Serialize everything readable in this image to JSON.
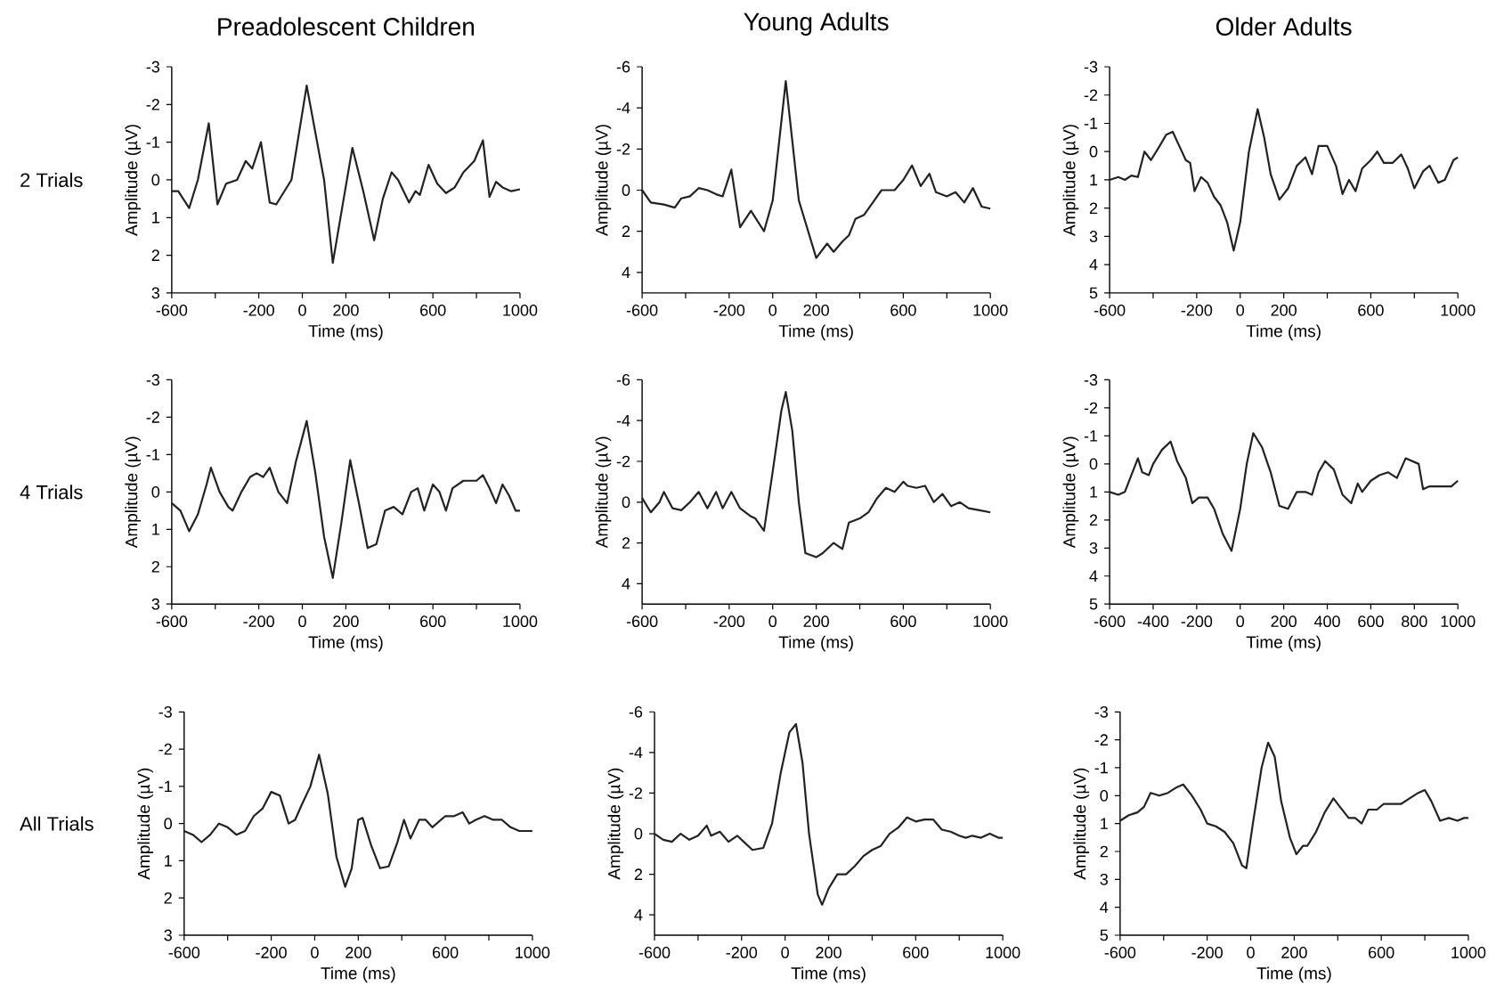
{
  "chart_data": [
    {
      "type": "line",
      "title": "Preadolescent Children",
      "xlabel": "Time (ms)",
      "ylabel": "Amplitude (µV)",
      "annotations": [
        "2 Trials"
      ],
      "xlim": [
        -600,
        1000
      ],
      "xticks": [
        -600,
        {
          "value": -400,
          "label": null
        },
        -200,
        0,
        200,
        {
          "value": 400,
          "label": null
        },
        600,
        {
          "value": 800,
          "label": null
        },
        1000
      ],
      "ylim": [
        3,
        -3
      ],
      "yticks": [
        -3,
        -2,
        -1,
        0,
        1,
        2,
        3
      ],
      "x": [
        -600,
        -570,
        -520,
        -480,
        -430,
        -390,
        -350,
        -300,
        -260,
        -230,
        -190,
        -150,
        -120,
        -50,
        20,
        100,
        140,
        190,
        230,
        280,
        330,
        370,
        410,
        440,
        490,
        520,
        540,
        580,
        620,
        660,
        700,
        740,
        790,
        830,
        860,
        890,
        920,
        960,
        1000
      ],
      "series": [
        {
          "color": "#222222",
          "values": [
            0.3,
            0.3,
            0.75,
            0,
            -1.5,
            0.65,
            0.1,
            0,
            -0.5,
            -0.3,
            -1.0,
            0.6,
            0.65,
            0,
            -2.5,
            0,
            2.2,
            0.5,
            -0.85,
            0.3,
            1.6,
            0.5,
            -0.2,
            0,
            0.6,
            0.3,
            0.4,
            -0.4,
            0.1,
            0.35,
            0.2,
            -0.2,
            -0.5,
            -1.05,
            0.45,
            0.05,
            0.2,
            0.3,
            0.25
          ]
        }
      ]
    },
    {
      "type": "line",
      "title": "Young Adults",
      "xlabel": "Time (ms)",
      "ylabel": "Amplitude (µV)",
      "xlim": [
        -600,
        1000
      ],
      "xticks": [
        -600,
        {
          "value": -400,
          "label": null
        },
        -200,
        0,
        200,
        {
          "value": 400,
          "label": null
        },
        600,
        {
          "value": 800,
          "label": null
        },
        1000
      ],
      "ylim": [
        5,
        -6
      ],
      "yticks": [
        -6,
        -4,
        -2,
        0,
        2,
        4
      ],
      "x": [
        -600,
        -560,
        -500,
        -450,
        -420,
        -380,
        -340,
        -300,
        -260,
        -230,
        -190,
        -150,
        -100,
        -40,
        0,
        60,
        120,
        200,
        250,
        280,
        320,
        350,
        380,
        420,
        460,
        500,
        560,
        600,
        640,
        680,
        720,
        750,
        800,
        840,
        880,
        920,
        960,
        1000
      ],
      "series": [
        {
          "color": "#222222",
          "values": [
            0,
            0.6,
            0.7,
            0.85,
            0.4,
            0.3,
            -0.1,
            0,
            0.2,
            0.3,
            -1.0,
            1.8,
            1.0,
            2.0,
            0.5,
            -5.3,
            0.5,
            3.3,
            2.6,
            3.0,
            2.5,
            2.2,
            1.4,
            1.2,
            0.6,
            0,
            0,
            -0.5,
            -1.2,
            -0.2,
            -0.8,
            0.1,
            0.3,
            0.1,
            0.6,
            -0.1,
            0.8,
            0.9
          ]
        }
      ]
    },
    {
      "type": "line",
      "title": "Older Adults",
      "xlabel": "Time (ms)",
      "ylabel": "Amplitude (µV)",
      "xlim": [
        -600,
        1000
      ],
      "xticks": [
        -600,
        {
          "value": -400,
          "label": null
        },
        -200,
        0,
        200,
        {
          "value": 400,
          "label": null
        },
        600,
        {
          "value": 800,
          "label": null
        },
        1000
      ],
      "ylim": [
        5,
        -3
      ],
      "yticks": [
        -3,
        -2,
        -1,
        0,
        1,
        2,
        3,
        4,
        5
      ],
      "x": [
        -600,
        -560,
        -530,
        -500,
        -470,
        -440,
        -410,
        -370,
        -340,
        -310,
        -280,
        -250,
        -230,
        -210,
        -180,
        -150,
        -120,
        -90,
        -60,
        -30,
        0,
        40,
        80,
        110,
        140,
        180,
        220,
        260,
        300,
        330,
        360,
        400,
        440,
        470,
        500,
        530,
        560,
        600,
        630,
        660,
        700,
        740,
        770,
        800,
        840,
        870,
        910,
        940,
        980,
        1000
      ],
      "series": [
        {
          "color": "#222222",
          "values": [
            1.0,
            0.9,
            1.0,
            0.85,
            0.9,
            0.0,
            0.3,
            -0.2,
            -0.6,
            -0.7,
            -0.2,
            0.3,
            0.4,
            1.4,
            0.9,
            1.1,
            1.6,
            1.9,
            2.5,
            3.5,
            2.5,
            0,
            -1.5,
            -0.5,
            0.8,
            1.7,
            1.3,
            0.5,
            0.2,
            0.8,
            -0.2,
            -0.2,
            0.5,
            1.5,
            1.0,
            1.4,
            0.6,
            0.3,
            0,
            0.4,
            0.4,
            0.1,
            0.6,
            1.3,
            0.7,
            0.5,
            1.1,
            1.0,
            0.3,
            0.2
          ]
        }
      ]
    },
    {
      "type": "line",
      "xlabel": "Time (ms)",
      "ylabel": "Amplitude (µV)",
      "annotations": [
        "4 Trials"
      ],
      "xlim": [
        -600,
        1000
      ],
      "xticks": [
        -600,
        {
          "value": -400,
          "label": null
        },
        -200,
        0,
        200,
        {
          "value": 400,
          "label": null
        },
        600,
        {
          "value": 800,
          "label": null
        },
        1000
      ],
      "ylim": [
        3,
        -3
      ],
      "yticks": [
        -3,
        -2,
        -1,
        0,
        1,
        2,
        3
      ],
      "x": [
        -600,
        -560,
        -520,
        -480,
        -440,
        -420,
        -380,
        -340,
        -320,
        -280,
        -240,
        -210,
        -180,
        -150,
        -110,
        -70,
        -30,
        20,
        60,
        100,
        140,
        180,
        220,
        260,
        300,
        340,
        380,
        420,
        460,
        500,
        530,
        560,
        600,
        630,
        660,
        690,
        740,
        800,
        830,
        860,
        890,
        920,
        950,
        980,
        1000
      ],
      "series": [
        {
          "color": "#222222",
          "values": [
            0.3,
            0.5,
            1.05,
            0.6,
            -0.2,
            -0.65,
            0,
            0.4,
            0.5,
            0,
            -0.4,
            -0.5,
            -0.4,
            -0.65,
            0,
            0.3,
            -0.8,
            -1.9,
            -0.5,
            1.2,
            2.3,
            0.8,
            -0.85,
            0.3,
            1.5,
            1.4,
            0.5,
            0.4,
            0.6,
            0,
            -0.1,
            0.5,
            -0.2,
            0,
            0.5,
            -0.1,
            -0.3,
            -0.3,
            -0.45,
            -0.1,
            0.3,
            -0.2,
            0.1,
            0.5,
            0.5
          ]
        }
      ]
    },
    {
      "type": "line",
      "xlabel": "Time (ms)",
      "ylabel": "Amplitude (µV)",
      "xlim": [
        -600,
        1000
      ],
      "xticks": [
        -600,
        {
          "value": -400,
          "label": null
        },
        -200,
        0,
        200,
        {
          "value": 400,
          "label": null
        },
        600,
        {
          "value": 800,
          "label": null
        },
        1000
      ],
      "ylim": [
        5,
        -6
      ],
      "yticks": [
        -6,
        -4,
        -2,
        0,
        2,
        4
      ],
      "x": [
        -600,
        -560,
        -520,
        -500,
        -460,
        -420,
        -380,
        -340,
        -300,
        -260,
        -230,
        -190,
        -150,
        -100,
        -80,
        -40,
        0,
        40,
        60,
        90,
        120,
        150,
        200,
        230,
        280,
        320,
        350,
        400,
        440,
        480,
        520,
        560,
        600,
        620,
        660,
        700,
        740,
        780,
        820,
        860,
        900,
        950,
        1000
      ],
      "series": [
        {
          "color": "#222222",
          "values": [
            -0.2,
            0.5,
            0,
            -0.5,
            0.3,
            0.4,
            0,
            -0.5,
            0.3,
            -0.5,
            0.3,
            -0.5,
            0.3,
            0.7,
            0.8,
            1.4,
            -1.5,
            -4.5,
            -5.4,
            -3.5,
            0,
            2.5,
            2.7,
            2.5,
            2.0,
            2.3,
            1.0,
            0.8,
            0.5,
            -0.2,
            -0.7,
            -0.5,
            -1.0,
            -0.8,
            -0.7,
            -0.8,
            0,
            -0.4,
            0.2,
            0,
            0.3,
            0.4,
            0.5
          ]
        }
      ]
    },
    {
      "type": "line",
      "xlabel": "Time (ms)",
      "ylabel": "Amplitude (µV)",
      "xlim": [
        -600,
        1000
      ],
      "xticks": [
        -600,
        -400,
        -200,
        0,
        200,
        400,
        600,
        800,
        1000
      ],
      "ylim": [
        5,
        -3
      ],
      "yticks": [
        -3,
        -2,
        -1,
        0,
        1,
        2,
        3,
        4,
        5
      ],
      "x": [
        -600,
        -560,
        -530,
        -500,
        -470,
        -450,
        -420,
        -400,
        -360,
        -320,
        -290,
        -250,
        -220,
        -190,
        -150,
        -120,
        -80,
        -40,
        0,
        30,
        60,
        100,
        140,
        180,
        220,
        260,
        300,
        330,
        360,
        390,
        430,
        470,
        510,
        540,
        560,
        600,
        640,
        680,
        720,
        760,
        790,
        820,
        840,
        870,
        900,
        940,
        970,
        1000
      ],
      "series": [
        {
          "color": "#222222",
          "values": [
            1.0,
            1.1,
            1.0,
            0.4,
            -0.2,
            0.3,
            0.4,
            0,
            -0.5,
            -0.8,
            -0.1,
            0.5,
            1.4,
            1.2,
            1.2,
            1.6,
            2.5,
            3.1,
            1.6,
            0,
            -1.1,
            -0.6,
            0.3,
            1.5,
            1.6,
            1.0,
            1.0,
            1.1,
            0.3,
            -0.1,
            0.2,
            1.1,
            1.4,
            0.7,
            1.0,
            0.6,
            0.4,
            0.3,
            0.5,
            -0.2,
            -0.1,
            0,
            0.9,
            0.8,
            0.8,
            0.8,
            0.8,
            0.6
          ]
        }
      ]
    },
    {
      "type": "line",
      "xlabel": "Time (ms)",
      "ylabel": "Amplitude (µV)",
      "annotations": [
        "All Trials"
      ],
      "xlim": [
        -600,
        1000
      ],
      "xticks": [
        -600,
        {
          "value": -400,
          "label": null
        },
        -200,
        0,
        200,
        {
          "value": 400,
          "label": null
        },
        600,
        {
          "value": 800,
          "label": null
        },
        1000
      ],
      "ylim": [
        3,
        -3
      ],
      "yticks": [
        -3,
        -2,
        -1,
        0,
        1,
        2,
        3
      ],
      "x": [
        -600,
        -560,
        -520,
        -480,
        -440,
        -400,
        -360,
        -320,
        -280,
        -240,
        -200,
        -160,
        -120,
        -90,
        -60,
        -20,
        20,
        60,
        100,
        140,
        170,
        200,
        220,
        260,
        300,
        340,
        380,
        410,
        440,
        480,
        510,
        540,
        600,
        640,
        680,
        710,
        740,
        780,
        820,
        860,
        900,
        940,
        960,
        1000
      ],
      "series": [
        {
          "color": "#222222",
          "values": [
            0.2,
            0.3,
            0.5,
            0.3,
            0,
            0.1,
            0.3,
            0.2,
            -0.2,
            -0.4,
            -0.85,
            -0.75,
            0,
            -0.1,
            -0.5,
            -1.0,
            -1.85,
            -0.8,
            0.9,
            1.7,
            1.2,
            -0.1,
            -0.15,
            0.6,
            1.2,
            1.15,
            0.5,
            -0.1,
            0.4,
            -0.1,
            -0.1,
            0.1,
            -0.2,
            -0.2,
            -0.3,
            0,
            -0.1,
            -0.2,
            -0.1,
            -0.1,
            0.1,
            0.2,
            0.2,
            0.2
          ]
        }
      ]
    },
    {
      "type": "line",
      "xlabel": "Time (ms)",
      "ylabel": "Amplitude (µV)",
      "xlim": [
        -600,
        1000
      ],
      "xticks": [
        -600,
        {
          "value": -400,
          "label": null
        },
        -200,
        0,
        200,
        {
          "value": 400,
          "label": null
        },
        600,
        {
          "value": 800,
          "label": null
        },
        1000
      ],
      "ylim": [
        5,
        -6
      ],
      "yticks": [
        -6,
        -4,
        -2,
        0,
        2,
        4
      ],
      "x": [
        -600,
        -560,
        -520,
        -480,
        -440,
        -400,
        -360,
        -340,
        -300,
        -260,
        -220,
        -190,
        -150,
        -100,
        -60,
        -20,
        20,
        50,
        80,
        110,
        150,
        170,
        200,
        240,
        280,
        320,
        360,
        400,
        440,
        480,
        520,
        560,
        600,
        640,
        680,
        720,
        760,
        800,
        830,
        860,
        900,
        940,
        980,
        1000
      ],
      "series": [
        {
          "color": "#222222",
          "values": [
            0,
            0.3,
            0.4,
            0,
            0.3,
            0.1,
            -0.4,
            0.1,
            -0.1,
            0.4,
            0.1,
            0.4,
            0.8,
            0.7,
            -0.5,
            -3.0,
            -5.0,
            -5.4,
            -3.5,
            0,
            3.0,
            3.5,
            2.7,
            2.0,
            2.0,
            1.6,
            1.1,
            0.8,
            0.6,
            0,
            -0.3,
            -0.8,
            -0.6,
            -0.7,
            -0.7,
            -0.2,
            -0.1,
            0.1,
            0.2,
            0.1,
            0.2,
            0,
            0.2,
            0.2
          ]
        }
      ]
    },
    {
      "type": "line",
      "xlabel": "Time (ms)",
      "ylabel": "Amplitude (µV)",
      "xlim": [
        -600,
        1000
      ],
      "xticks": [
        -600,
        {
          "value": -400,
          "label": null
        },
        -200,
        0,
        200,
        {
          "value": 400,
          "label": null
        },
        600,
        {
          "value": 800,
          "label": null
        },
        1000
      ],
      "ylim": [
        5,
        -3
      ],
      "yticks": [
        -3,
        -2,
        -1,
        0,
        1,
        2,
        3,
        4,
        5
      ],
      "x": [
        -600,
        -560,
        -520,
        -490,
        -460,
        -420,
        -380,
        -340,
        -310,
        -270,
        -230,
        -200,
        -160,
        -120,
        -80,
        -40,
        -20,
        10,
        50,
        80,
        110,
        140,
        180,
        210,
        240,
        260,
        300,
        340,
        380,
        410,
        450,
        480,
        510,
        540,
        580,
        610,
        650,
        690,
        730,
        770,
        800,
        830,
        870,
        910,
        950,
        980,
        1000
      ],
      "series": [
        {
          "color": "#222222",
          "values": [
            0.9,
            0.7,
            0.6,
            0.4,
            -0.1,
            0,
            -0.1,
            -0.3,
            -0.4,
            0,
            0.5,
            1.0,
            1.1,
            1.3,
            1.7,
            2.5,
            2.6,
            1.0,
            -1.0,
            -1.9,
            -1.4,
            0.2,
            1.5,
            2.1,
            1.8,
            1.8,
            1.3,
            0.6,
            0.1,
            0.4,
            0.8,
            0.8,
            1.0,
            0.5,
            0.5,
            0.3,
            0.3,
            0.3,
            0.1,
            -0.1,
            -0.2,
            0.2,
            0.9,
            0.8,
            0.9,
            0.8,
            0.8
          ]
        }
      ]
    }
  ]
}
